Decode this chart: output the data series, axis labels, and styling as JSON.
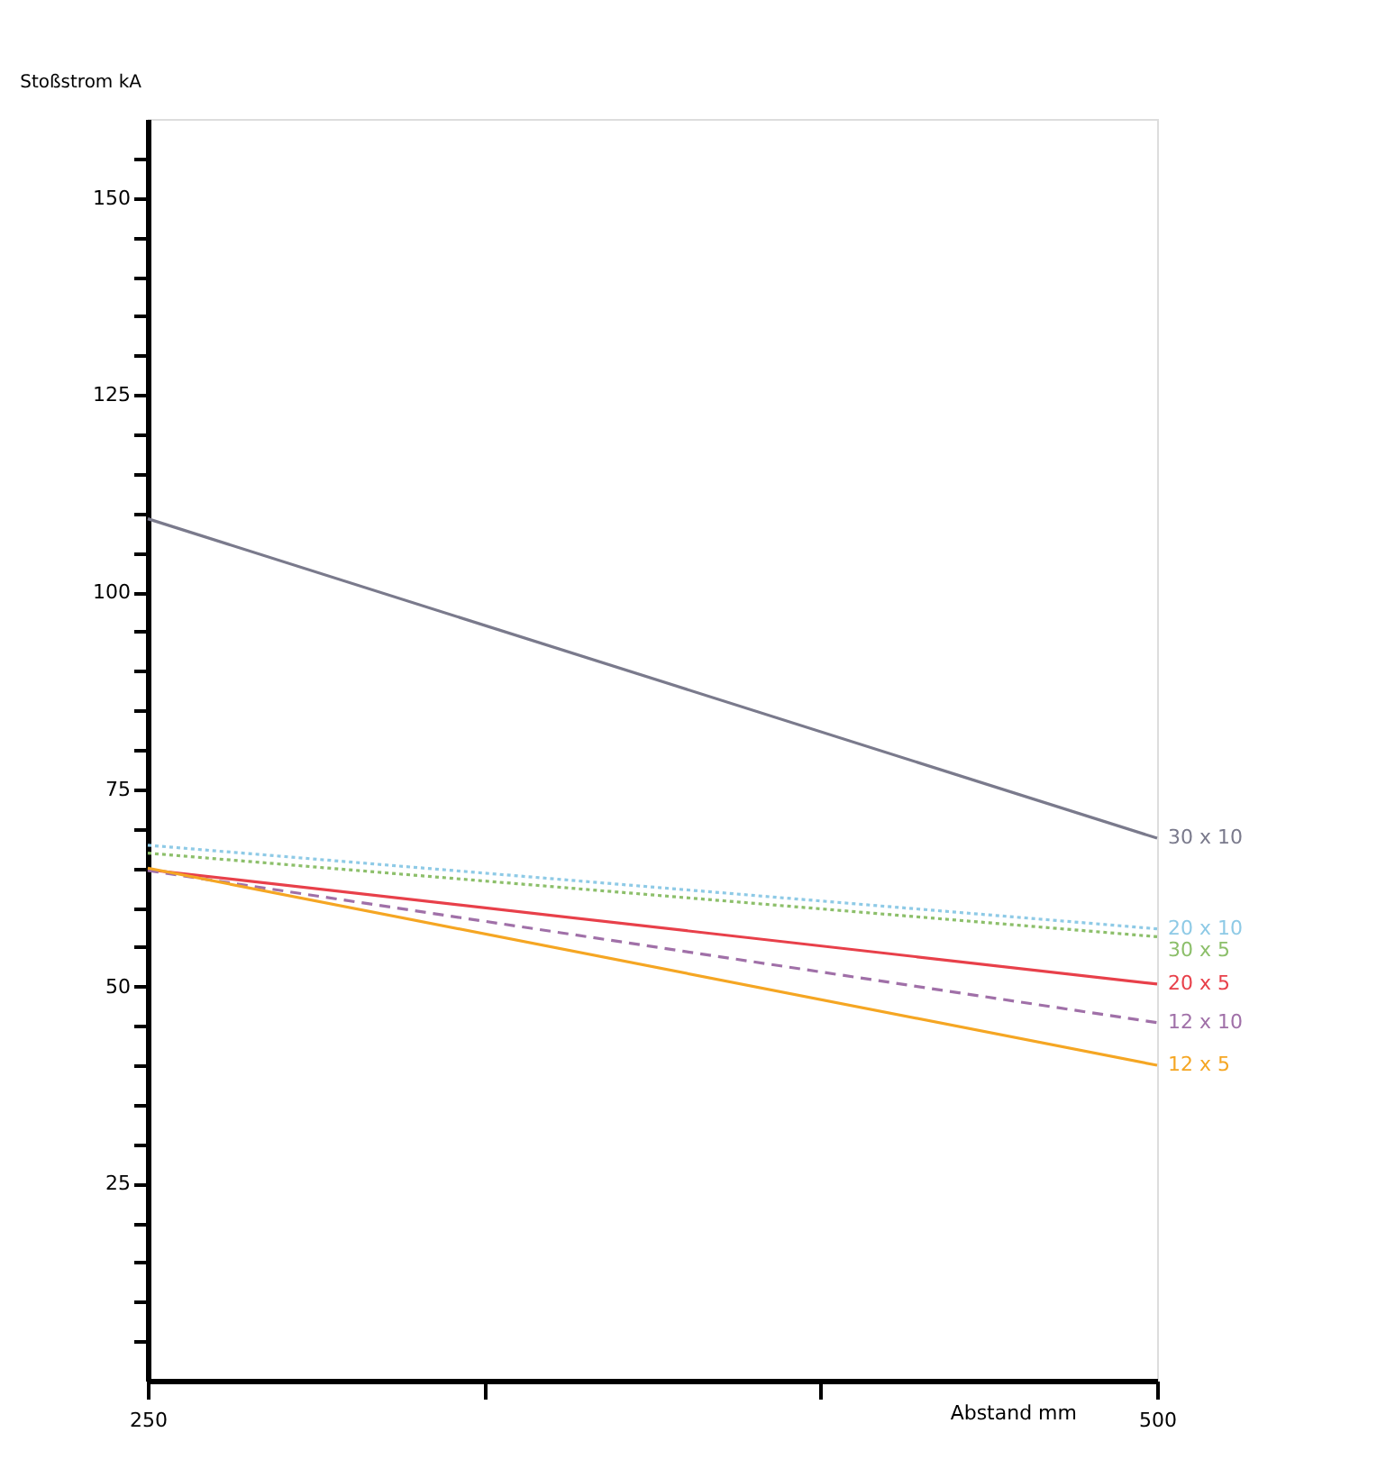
{
  "chart_data": {
    "type": "line",
    "xlabel": "Abstand mm",
    "ylabel": "Stoßstrom kA",
    "x": [
      250,
      500
    ],
    "xlim": [
      250,
      500
    ],
    "xticks": [
      250,
      {
        "value": 333.33,
        "label": null
      },
      {
        "value": 416.67,
        "label": null
      },
      500
    ],
    "ylim": [
      0,
      160
    ],
    "yticks": [
      {
        "value": 5,
        "label": null
      },
      {
        "value": 10,
        "label": null
      },
      {
        "value": 15,
        "label": null
      },
      {
        "value": 20,
        "label": null
      },
      25,
      {
        "value": 30,
        "label": null
      },
      {
        "value": 35,
        "label": null
      },
      {
        "value": 40,
        "label": null
      },
      {
        "value": 45,
        "label": null
      },
      50,
      {
        "value": 55,
        "label": null
      },
      {
        "value": 60,
        "label": null
      },
      {
        "value": 65,
        "label": null
      },
      {
        "value": 70,
        "label": null
      },
      75,
      {
        "value": 80,
        "label": null
      },
      {
        "value": 85,
        "label": null
      },
      {
        "value": 90,
        "label": null
      },
      {
        "value": 95,
        "label": null
      },
      100,
      {
        "value": 105,
        "label": null
      },
      {
        "value": 110,
        "label": null
      },
      {
        "value": 115,
        "label": null
      },
      {
        "value": 120,
        "label": null
      },
      125,
      {
        "value": 130,
        "label": null
      },
      {
        "value": 135,
        "label": null
      },
      {
        "value": 140,
        "label": null
      },
      {
        "value": 145,
        "label": null
      },
      150,
      {
        "value": 155,
        "label": null
      }
    ],
    "grid": false,
    "legend": false,
    "marker": "none",
    "series": [
      {
        "name": "30 x 10",
        "color": "#7a7a8c",
        "line_style": "solid",
        "values": [
          109.3,
          68.8
        ]
      },
      {
        "name": "20 x 10",
        "color": "#8ecae6",
        "line_style": "dotted",
        "values": [
          67.9,
          57.3
        ]
      },
      {
        "name": "30 x 5",
        "color": "#8cbf6a",
        "line_style": "dotted",
        "values": [
          66.9,
          56.3
        ]
      },
      {
        "name": "20 x 5",
        "color": "#e8404a",
        "line_style": "solid",
        "values": [
          64.8,
          50.3
        ]
      },
      {
        "name": "12 x 10",
        "color": "#a070a8",
        "line_style": "dashed",
        "values": [
          64.7,
          45.4
        ]
      },
      {
        "name": "12 x 5",
        "color": "#f5a623",
        "line_style": "solid",
        "values": [
          65,
          40
        ]
      }
    ]
  }
}
